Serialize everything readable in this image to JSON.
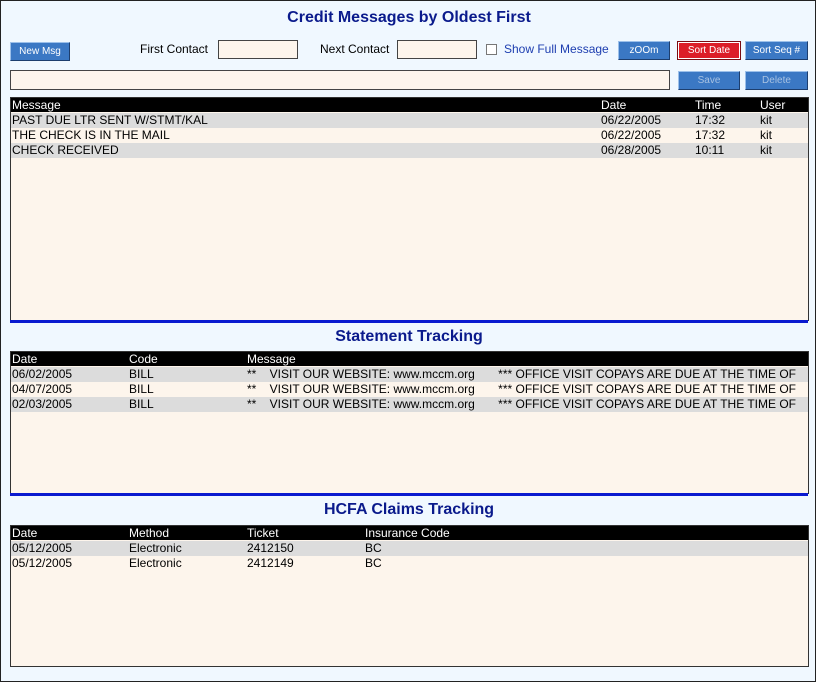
{
  "header": {
    "title": "Credit Messages by Oldest First"
  },
  "toolbar": {
    "new_msg": "New Msg",
    "first_contact_label": "First Contact",
    "first_contact_value": "",
    "next_contact_label": "Next Contact",
    "next_contact_value": "",
    "show_full_message": "Show Full Message",
    "zoom": "zOOm",
    "sort_date": "Sort Date",
    "sort_seq": "Sort Seq #",
    "save": "Save",
    "delete": "Delete",
    "message_input_value": ""
  },
  "messages": {
    "columns": [
      "Message",
      "Date",
      "Time",
      "User"
    ],
    "rows": [
      {
        "message": "PAST DUE LTR SENT W/STMT/KAL",
        "date": "06/22/2005",
        "time": "17:32",
        "user": "kit"
      },
      {
        "message": "THE CHECK IS IN THE MAIL",
        "date": "06/22/2005",
        "time": "17:32",
        "user": "kit"
      },
      {
        "message": "CHECK RECEIVED",
        "date": "06/28/2005",
        "time": "10:11",
        "user": "kit"
      }
    ]
  },
  "statement": {
    "title": "Statement Tracking",
    "columns": [
      "Date",
      "Code",
      "Message"
    ],
    "rows": [
      {
        "date": "06/02/2005",
        "code": "BILL",
        "message": "**    VISIT OUR WEBSITE: www.mccm.org       *** OFFICE VISIT COPAYS ARE DUE AT THE TIME OF"
      },
      {
        "date": "04/07/2005",
        "code": "BILL",
        "message": "**    VISIT OUR WEBSITE: www.mccm.org       *** OFFICE VISIT COPAYS ARE DUE AT THE TIME OF"
      },
      {
        "date": "02/03/2005",
        "code": "BILL",
        "message": "**    VISIT OUR WEBSITE: www.mccm.org       *** OFFICE VISIT COPAYS ARE DUE AT THE TIME OF"
      }
    ]
  },
  "hcfa": {
    "title": "HCFA Claims Tracking",
    "columns": [
      "Date",
      "Method",
      "Ticket",
      "Insurance Code"
    ],
    "rows": [
      {
        "date": "05/12/2005",
        "method": "Electronic",
        "ticket": "2412150",
        "insurance_code": "BC"
      },
      {
        "date": "05/12/2005",
        "method": "Electronic",
        "ticket": "2412149",
        "insurance_code": "BC"
      }
    ]
  }
}
